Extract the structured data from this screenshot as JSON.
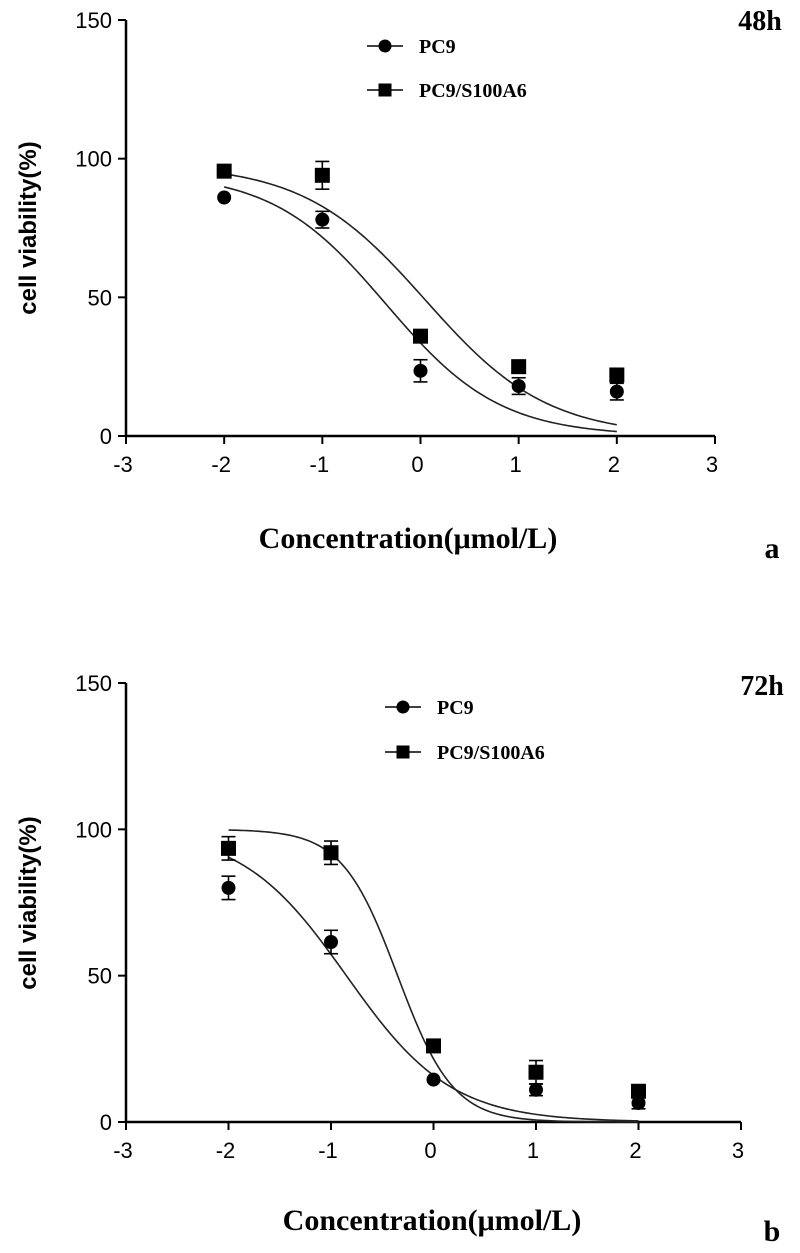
{
  "chart_data": [
    {
      "type": "scatter",
      "panel_label": "a",
      "title": "48h",
      "xlabel": "Concentration(μmol/L)",
      "ylabel": "cell viability(%)",
      "xlim": [
        -3,
        3
      ],
      "ylim": [
        0,
        150
      ],
      "xticks": [
        -3,
        -2,
        -1,
        0,
        1,
        2,
        3
      ],
      "yticks": [
        0,
        50,
        100,
        150
      ],
      "legend_position": "top-center",
      "series": [
        {
          "name": "PC9",
          "marker": "circle",
          "x": [
            -2,
            -1,
            0,
            1,
            2
          ],
          "y": [
            86,
            78,
            23.5,
            18,
            16
          ],
          "err": [
            0,
            3,
            4,
            3,
            3
          ],
          "fit": {
            "top": 95,
            "bottom": 0,
            "log_ec50": -0.35,
            "hill": -0.75
          }
        },
        {
          "name": "PC9/S100A6",
          "marker": "square",
          "x": [
            -2,
            -1,
            0,
            1,
            2
          ],
          "y": [
            95.5,
            94,
            36,
            25,
            22
          ],
          "err": [
            0,
            5,
            0,
            0,
            0
          ],
          "fit": {
            "top": 98,
            "bottom": 0,
            "log_ec50": 0.05,
            "hill": -0.7
          }
        }
      ]
    },
    {
      "type": "scatter",
      "panel_label": "b",
      "title": "72h",
      "xlabel": "Concentration(μmol/L)",
      "ylabel": "cell viability(%)",
      "xlim": [
        -3,
        3
      ],
      "ylim": [
        0,
        150
      ],
      "xticks": [
        -3,
        -2,
        -1,
        0,
        1,
        2,
        3
      ],
      "yticks": [
        0,
        50,
        100,
        150
      ],
      "legend_position": "top-center",
      "series": [
        {
          "name": "PC9",
          "marker": "circle",
          "x": [
            -2,
            -1,
            0,
            1,
            2
          ],
          "y": [
            80,
            61.5,
            14.5,
            11,
            6.5
          ],
          "err": [
            4,
            4,
            0,
            2,
            2
          ],
          "fit": {
            "top": 100,
            "bottom": 0,
            "log_ec50": -0.85,
            "hill": -0.85
          }
        },
        {
          "name": "PC9/S100A6",
          "marker": "square",
          "x": [
            -2,
            -1,
            0,
            1,
            2
          ],
          "y": [
            93.5,
            92,
            26,
            17,
            10.5
          ],
          "err": [
            4,
            4,
            0,
            4,
            2
          ],
          "fit": {
            "top": 100,
            "bottom": 0,
            "log_ec50": -0.35,
            "hill": -1.6
          }
        }
      ]
    }
  ]
}
